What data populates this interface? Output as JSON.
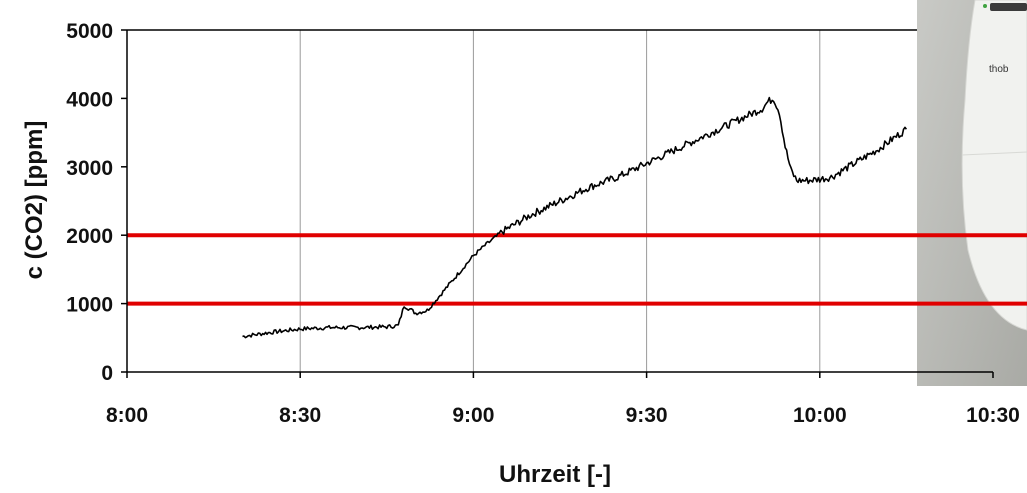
{
  "chart_data": {
    "type": "line",
    "xlabel": "Uhrzeit [-]",
    "ylabel": "c (CO2) [ppm]",
    "xlim": [
      "8:00",
      "10:30"
    ],
    "ylim": [
      0,
      5000
    ],
    "x_ticks": [
      "8:00",
      "8:30",
      "9:00",
      "9:30",
      "10:00",
      "10:30"
    ],
    "y_ticks": [
      "0",
      "1000",
      "2000",
      "3000",
      "4000",
      "5000"
    ],
    "grid": "vertical",
    "reference_lines": [
      {
        "y": 1000,
        "color": "#e00000"
      },
      {
        "y": 2000,
        "color": "#e00000"
      }
    ],
    "series": [
      {
        "color": "#000000",
        "x": [
          "8:20",
          "8:25",
          "8:30",
          "8:35",
          "8:40",
          "8:45",
          "8:47",
          "8:48",
          "8:49",
          "8:50",
          "8:52",
          "8:55",
          "8:58",
          "9:00",
          "9:02",
          "9:05",
          "9:10",
          "9:15",
          "9:20",
          "9:25",
          "9:30",
          "9:35",
          "9:40",
          "9:45",
          "9:50",
          "9:51",
          "9:52",
          "9:53",
          "9:54",
          "9:55",
          "9:56",
          "9:58",
          "10:00",
          "10:02",
          "10:05",
          "10:10",
          "10:15"
        ],
        "y": [
          520,
          580,
          630,
          650,
          650,
          660,
          680,
          970,
          920,
          860,
          900,
          1200,
          1500,
          1700,
          1850,
          2050,
          2300,
          2500,
          2700,
          2850,
          3050,
          3250,
          3450,
          3650,
          3850,
          3950,
          4000,
          3800,
          3300,
          2950,
          2800,
          2800,
          2820,
          2850,
          3000,
          3250,
          3550
        ]
      }
    ]
  },
  "photo": {
    "caption_fragment": "thob"
  }
}
